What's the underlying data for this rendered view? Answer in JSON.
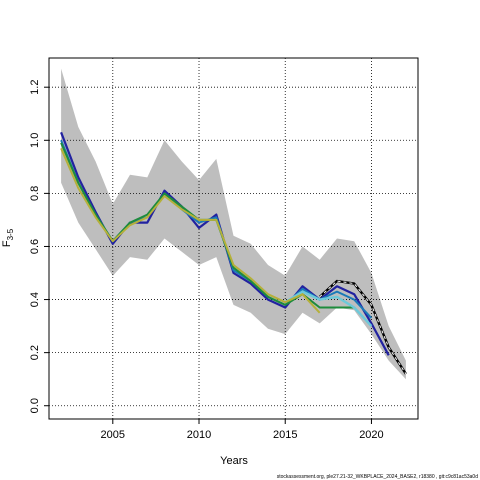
{
  "chart_data": {
    "type": "line",
    "title": "",
    "xlabel": "Years",
    "ylabel": "F",
    "ylabel_subscript": "3-5",
    "xlim": [
      2001.3,
      2022.7
    ],
    "ylim": [
      -0.05,
      1.31
    ],
    "xticks": [
      2005,
      2010,
      2015,
      2020
    ],
    "yticks": [
      0.0,
      0.2,
      0.4,
      0.6,
      0.8,
      1.0,
      1.2
    ],
    "ytick_labels": [
      "0.0",
      "0.2",
      "0.4",
      "0.6",
      "0.8",
      "1.0",
      "1.2"
    ],
    "grid": true,
    "grid_style": "dotted",
    "confidence_band": {
      "color": "#bebebe",
      "x": [
        2002,
        2003,
        2004,
        2005,
        2006,
        2007,
        2008,
        2009,
        2010,
        2011,
        2012,
        2013,
        2014,
        2015,
        2016,
        2017,
        2018,
        2019,
        2020,
        2021,
        2022
      ],
      "upper": [
        1.27,
        1.05,
        0.92,
        0.76,
        0.87,
        0.86,
        1.0,
        0.92,
        0.85,
        0.93,
        0.64,
        0.61,
        0.53,
        0.49,
        0.6,
        0.55,
        0.63,
        0.62,
        0.5,
        0.3,
        0.17
      ],
      "lower": [
        0.84,
        0.69,
        0.59,
        0.49,
        0.56,
        0.55,
        0.63,
        0.58,
        0.53,
        0.56,
        0.38,
        0.35,
        0.29,
        0.27,
        0.35,
        0.31,
        0.37,
        0.36,
        0.27,
        0.17,
        0.1
      ]
    },
    "series": [
      {
        "color": "#2222a0",
        "width": 2.2,
        "dashed": false,
        "x": [
          2002,
          2003,
          2004,
          2005,
          2006,
          2007,
          2008,
          2009,
          2010,
          2011,
          2012,
          2013,
          2014,
          2015,
          2016,
          2017,
          2018,
          2019,
          2020,
          2021
        ],
        "values": [
          1.03,
          0.86,
          0.73,
          0.61,
          0.69,
          0.69,
          0.81,
          0.75,
          0.67,
          0.72,
          0.5,
          0.46,
          0.4,
          0.37,
          0.45,
          0.4,
          0.45,
          0.42,
          0.31,
          0.19
        ]
      },
      {
        "color": "#1a7ab8",
        "width": 2,
        "dashed": false,
        "x": [
          2002,
          2003,
          2004,
          2005,
          2006,
          2007,
          2008,
          2009,
          2010,
          2011,
          2012,
          2013,
          2014,
          2015,
          2016,
          2017,
          2018,
          2019,
          2020
        ],
        "values": [
          1.0,
          0.84,
          0.72,
          0.62,
          0.69,
          0.71,
          0.8,
          0.74,
          0.69,
          0.71,
          0.51,
          0.47,
          0.41,
          0.38,
          0.44,
          0.4,
          0.43,
          0.4,
          0.33
        ]
      },
      {
        "color": "#1e8c3c",
        "width": 2,
        "dashed": false,
        "x": [
          2002,
          2003,
          2004,
          2005,
          2006,
          2007,
          2008,
          2009,
          2010,
          2011,
          2012,
          2013,
          2014,
          2015,
          2016,
          2017,
          2018,
          2019
        ],
        "values": [
          0.99,
          0.84,
          0.72,
          0.62,
          0.69,
          0.72,
          0.8,
          0.75,
          0.7,
          0.7,
          0.52,
          0.47,
          0.41,
          0.38,
          0.42,
          0.37,
          0.37,
          0.37
        ]
      },
      {
        "color": "#6dc9d9",
        "width": 2.4,
        "dashed": false,
        "x": [
          2015,
          2016,
          2017,
          2018,
          2019,
          2020
        ],
        "values": [
          0.39,
          0.43,
          0.4,
          0.41,
          0.37,
          0.3
        ]
      },
      {
        "color": "#b5b03a",
        "width": 2,
        "dashed": false,
        "x": [
          2002,
          2003,
          2004,
          2005,
          2006,
          2007,
          2008,
          2009,
          2010,
          2011,
          2012,
          2013,
          2014,
          2015,
          2016,
          2017
        ],
        "values": [
          0.97,
          0.82,
          0.71,
          0.62,
          0.68,
          0.71,
          0.79,
          0.74,
          0.7,
          0.7,
          0.53,
          0.48,
          0.42,
          0.39,
          0.42,
          0.35
        ]
      },
      {
        "color": "#000000",
        "width": 2.4,
        "dashed": true,
        "x": [
          2017,
          2018,
          2019,
          2020,
          2021,
          2022
        ],
        "values": [
          0.41,
          0.47,
          0.46,
          0.38,
          0.22,
          0.12
        ]
      }
    ]
  },
  "footer_text": "stockassessment.org, ple27.21-32_WKBPLACE_2024_BASE2, r18380 , git:c9c81ac53a0d"
}
